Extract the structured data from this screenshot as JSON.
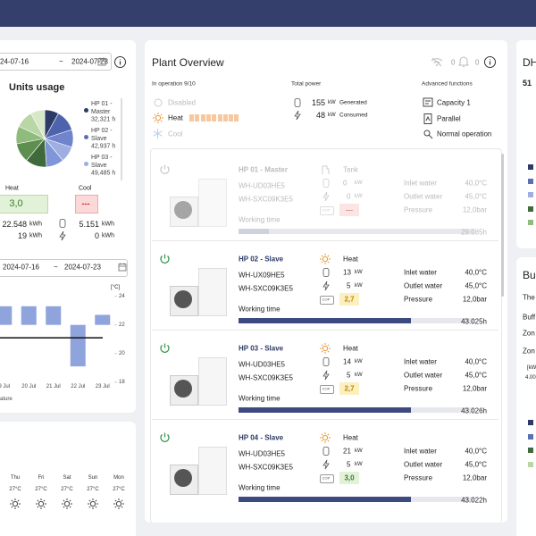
{
  "left": {
    "date_from": "24-07-16",
    "date_sep": "~",
    "date_to": "2024-07-23",
    "usage_title": "Units usage",
    "pie": [
      {
        "color": "#2e3a66",
        "value": 8
      },
      {
        "color": "#4e63ad",
        "value": 12
      },
      {
        "color": "#6f84cc",
        "value": 10
      },
      {
        "color": "#9eaee0",
        "value": 9
      },
      {
        "color": "#7f96d8",
        "value": 10
      },
      {
        "color": "#3f6a3b",
        "value": 12
      },
      {
        "color": "#5e8f50",
        "value": 11
      },
      {
        "color": "#8fbb7c",
        "value": 10
      },
      {
        "color": "#b9d6a6",
        "value": 10
      },
      {
        "color": "#d6e8c8",
        "value": 8
      }
    ],
    "legend": [
      {
        "name": "HP 01 - Master",
        "hours": "32,321 h",
        "color": "#2e3a66"
      },
      {
        "name": "HP 02 - Slave",
        "hours": "42,937 h",
        "color": "#5b6fb5"
      },
      {
        "name": "HP 03 - Slave",
        "hours": "49,485 h",
        "color": "#9eaee0"
      }
    ],
    "heat_label": "Heat",
    "cool_label": "Cool",
    "heat_cop": "3,0",
    "cool_cop": "---",
    "heat_generated": "22.548",
    "heat_consumed": "19",
    "cool_generated": "5.151",
    "cool_consumed": "0",
    "energy_unit": "kWh",
    "temperature_chart": {
      "type": "bar",
      "date_from": "2024-07-16",
      "date_sep": "~",
      "date_to": "2024-07-23",
      "unit": "[°C]",
      "categories": [
        "9 Jul",
        "20 Jul",
        "21 Jul",
        "22 Jul",
        "23 Jul"
      ],
      "values": [
        23.3,
        23.3,
        23.3,
        19.1,
        22.7
      ],
      "base": 22,
      "line": 21.1,
      "color": "#8fa3dc",
      "ylim": [
        17.8,
        24.6
      ],
      "yticks": [
        24,
        22,
        20,
        18
      ],
      "caption": "ature"
    }
  },
  "weather": {
    "days": [
      {
        "day": "Thu",
        "temp": "27°C"
      },
      {
        "day": "Fri",
        "temp": "27°C"
      },
      {
        "day": "Sat",
        "temp": "27°C"
      },
      {
        "day": "Sun",
        "temp": "27°C"
      },
      {
        "day": "Mon",
        "temp": "27°C"
      }
    ]
  },
  "plant": {
    "title": "Plant Overview",
    "alerts": "0",
    "notifications": "0",
    "operation_label": "In operation 9/10",
    "disabled": "Disabled",
    "heat": "Heat",
    "cool": "Cool",
    "power_label": "Total power",
    "generated_value": "155",
    "generated_unit": "kW",
    "generated_label": "Generated",
    "consumed_value": "48",
    "consumed_unit": "kW",
    "consumed_label": "Consumed",
    "advanced_label": "Advanced functions",
    "advanced": [
      "Capacity 1",
      "Parallel",
      "Normal operation"
    ]
  },
  "unit_labels": {
    "inlet": "Inlet water",
    "outlet": "Outlet water",
    "pressure": "Pressure",
    "working_time": "Working time",
    "cop": "COP",
    "power_unit": "kW"
  },
  "units": [
    {
      "name": "HP 01 - Master",
      "model_1": "WH-UD03HE5",
      "model_2": "WH-SXC09K3E5",
      "mode": "Tank",
      "generated": "0",
      "consumed": "0",
      "cop": "---",
      "inlet": "40,0°C",
      "outlet": "45,0°C",
      "pressure": "12,0bar",
      "working_time": "29.085h",
      "progress": 0.13,
      "disabled": true
    },
    {
      "name": "HP 02 - Slave",
      "model_1": "WH-UX09HE5",
      "model_2": "WH-SXC09K3E5",
      "mode": "Heat",
      "generated": "13",
      "consumed": "5",
      "cop": "2,7",
      "inlet": "40,0°C",
      "outlet": "45,0°C",
      "pressure": "12,0bar",
      "working_time": "43.025h",
      "progress": 0.73,
      "disabled": false
    },
    {
      "name": "HP 03 - Slave",
      "model_1": "WH-UD03HE5",
      "model_2": "WH-SXC09K3E5",
      "mode": "Heat",
      "generated": "14",
      "consumed": "5",
      "cop": "2,7",
      "inlet": "40,0°C",
      "outlet": "45,0°C",
      "pressure": "12,0bar",
      "working_time": "43.026h",
      "progress": 0.73,
      "disabled": false
    },
    {
      "name": "HP 04 - Slave",
      "model_1": "WH-UD03HE5",
      "model_2": "WH-SXC09K3E5",
      "mode": "Heat",
      "generated": "21",
      "consumed": "5",
      "cop": "3,0",
      "inlet": "40,0°C",
      "outlet": "45,0°C",
      "pressure": "12,0bar",
      "working_time": "43.022h",
      "progress": 0.73,
      "disabled": false
    }
  ],
  "right": {
    "dhw_title": "DH",
    "dhw_value": "51",
    "buffer_title": "Bu",
    "lines": [
      "The",
      "Buff",
      "Zon",
      "Zon"
    ],
    "axis_unit": "[kW",
    "axis_value": "4.00"
  }
}
